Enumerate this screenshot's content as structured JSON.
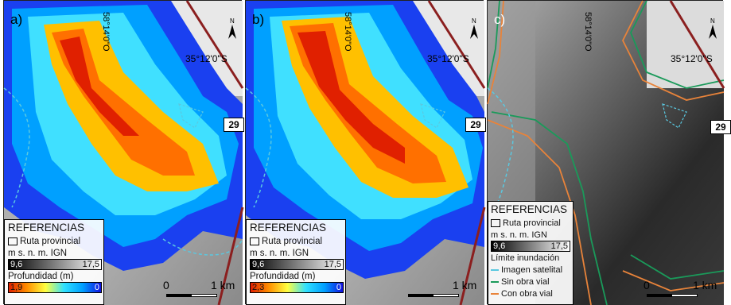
{
  "panels": [
    {
      "id": "a",
      "label": "a)",
      "lon_label": "58°14'0\"O",
      "lat_label": "35°12'0\"S",
      "route_number": "29",
      "legend": {
        "title": "REFERENCIAS",
        "route_label": "Ruta provincial",
        "elev_label": "m s. n. m. IGN",
        "elev_min": "9,6",
        "elev_max": "17,5",
        "depth_label": "Profundidad (m)",
        "depth_max": "1,9",
        "depth_min": "0"
      },
      "scale": {
        "zero": "0",
        "one": "1 km"
      }
    },
    {
      "id": "b",
      "label": "b)",
      "lon_label": "58°14'0\"O",
      "lat_label": "35°12'0\"S",
      "route_number": "29",
      "legend": {
        "title": "REFERENCIAS",
        "route_label": "Ruta provincial",
        "elev_label": "m s. n. m. IGN",
        "elev_min": "9,6",
        "elev_max": "17,5",
        "depth_label": "Profundidad (m)",
        "depth_max": "2,3",
        "depth_min": "0"
      },
      "scale": {
        "zero": "",
        "one": "1 km"
      }
    },
    {
      "id": "c",
      "label": "c)",
      "lon_label": "58°14'0\"O",
      "lat_label": "35°12'0\"S",
      "route_number": "29",
      "legend": {
        "title": "REFERENCIAS",
        "route_label": "Ruta provincial",
        "elev_label": "m s. n. m. IGN",
        "elev_min": "9,6",
        "elev_max": "17,5",
        "limit_title": "Límite inundación",
        "limits": [
          {
            "label": "Imagen satelital",
            "color": "#5ac8e0"
          },
          {
            "label": "Sin obra vial",
            "color": "#1a9a5a"
          },
          {
            "label": "Con obra vial",
            "color": "#e8833a"
          }
        ]
      },
      "scale": {
        "zero": "0",
        "one": "1 km"
      }
    }
  ],
  "colors": {
    "road": "#8b1f1f",
    "dashed": "#5ac8e0",
    "depth_ramp": [
      "#1010e0",
      "#00a0ff",
      "#30e0ff",
      "#ffff40",
      "#ff9000",
      "#e02000"
    ]
  }
}
